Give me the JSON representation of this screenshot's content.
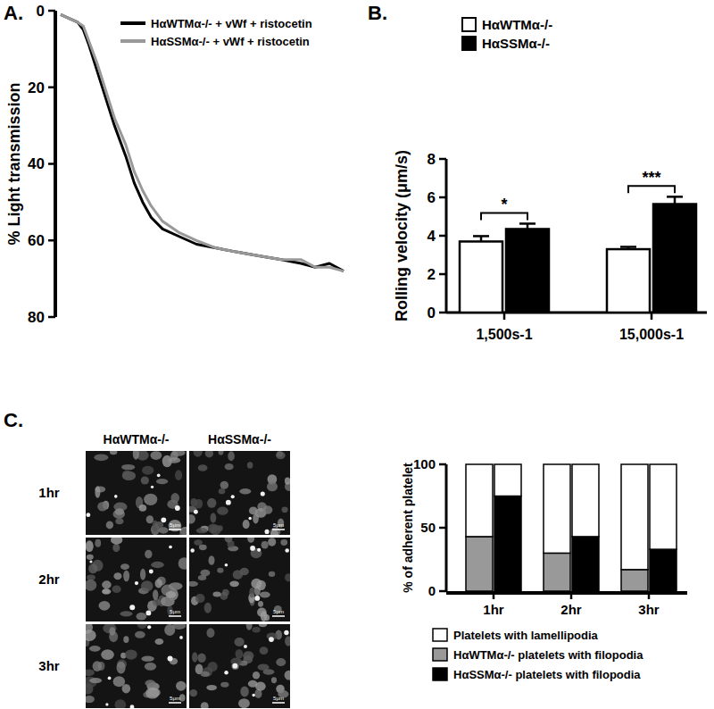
{
  "chart_data": [
    {
      "type": "line",
      "title": "A.",
      "y_label": "% Light transmission",
      "x": [
        0,
        3,
        6,
        8,
        10,
        13,
        16,
        19,
        23,
        26,
        29,
        32,
        36,
        42,
        48,
        55,
        62,
        70,
        78,
        85,
        90,
        95,
        100
      ],
      "xlim": [
        0,
        100
      ],
      "ylim": [
        80,
        0
      ],
      "yticks": [
        0,
        20,
        40,
        60,
        80
      ],
      "tick_labels": "y",
      "legend": "upper right",
      "series": [
        {
          "name": "HαWTMα-/- + vWf + ristocetin",
          "color": "#000000",
          "values": [
            1,
            2,
            3,
            5,
            9,
            16,
            23,
            30,
            38,
            45,
            50,
            54,
            57,
            59,
            61,
            62,
            63,
            64,
            65,
            66,
            67,
            66,
            68
          ]
        },
        {
          "name": "HαSSMα-/- + vWf + ristocetin",
          "color": "#999999",
          "values": [
            1,
            2,
            3,
            4,
            8,
            14,
            21,
            28,
            35,
            42,
            47,
            51,
            55,
            58,
            60,
            62,
            63,
            64,
            65,
            65,
            67,
            67,
            68
          ]
        }
      ]
    },
    {
      "type": "bar",
      "title": "B.",
      "y_label": "Rolling velocity (μm/s)",
      "categories": [
        "1,500s-1",
        "15,000s-1"
      ],
      "ylim": [
        0,
        8
      ],
      "yticks": [
        0,
        2,
        4,
        6,
        8
      ],
      "legend": "upper left",
      "series": [
        {
          "name": "HαWTMα-/-",
          "color": "#ffffff",
          "values": [
            3.7,
            3.3
          ],
          "errors": [
            0.28,
            0.12
          ]
        },
        {
          "name": "HαSSMα-/-",
          "color": "#000000",
          "values": [
            4.35,
            5.65
          ],
          "errors": [
            0.28,
            0.38
          ]
        }
      ],
      "annotations": [
        {
          "text": "*",
          "category": "1,500s-1"
        },
        {
          "text": "***",
          "category": "15,000s-1"
        }
      ]
    },
    {
      "type": "image_grid",
      "title": "C.",
      "columns": [
        "HαWTMα-/-",
        "HαSSMα-/-"
      ],
      "rows": [
        "1hr",
        "2hr",
        "3hr"
      ],
      "scale_bar": "5μm"
    },
    {
      "type": "bar",
      "y_label": "% of adherent platelet",
      "categories": [
        "1hr",
        "2hr",
        "3hr"
      ],
      "ylim": [
        0,
        100
      ],
      "yticks": [
        0,
        50,
        100
      ],
      "stacked": true,
      "legend": "bottom",
      "stacks": [
        {
          "series": [
            {
              "name": "Platelets with lamellipodia",
              "color": "#ffffff",
              "values": [
                57,
                70,
                83
              ]
            },
            {
              "name": "HαWTMα-/- platelets with filopodia",
              "color": "#999999",
              "values": [
                43,
                30,
                17
              ]
            }
          ]
        },
        {
          "series": [
            {
              "color": "#ffffff",
              "values": [
                25,
                57,
                67
              ]
            },
            {
              "name": "HαSSMα-/- platelets with filopodia",
              "color": "#000000",
              "values": [
                75,
                43,
                33
              ]
            }
          ]
        }
      ]
    }
  ]
}
